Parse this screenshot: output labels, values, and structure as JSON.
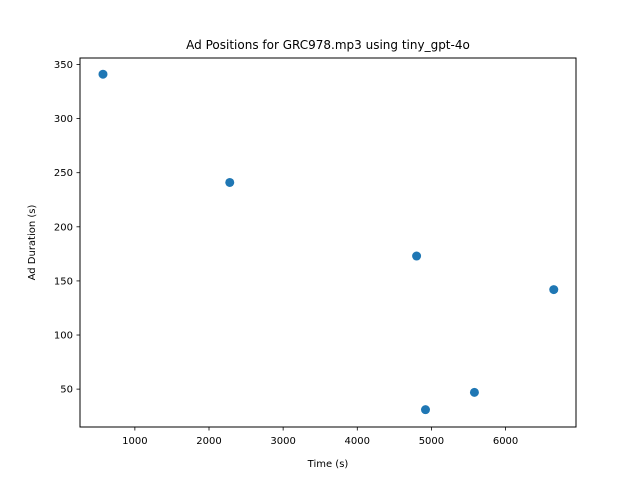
{
  "chart_data": {
    "type": "scatter",
    "title": "Ad Positions for GRC978.mp3 using tiny_gpt-4o",
    "xlabel": "Time (s)",
    "ylabel": "Ad Duration (s)",
    "xlim": [
      260,
      6950
    ],
    "ylim": [
      15,
      356
    ],
    "xticks": [
      1000,
      2000,
      3000,
      4000,
      5000,
      6000
    ],
    "yticks": [
      50,
      100,
      150,
      200,
      250,
      300,
      350
    ],
    "grid": false,
    "marker_color": "#1f77b4",
    "points": [
      {
        "x": 570,
        "y": 341
      },
      {
        "x": 2280,
        "y": 241
      },
      {
        "x": 4800,
        "y": 173
      },
      {
        "x": 4920,
        "y": 31
      },
      {
        "x": 5580,
        "y": 47
      },
      {
        "x": 6650,
        "y": 142
      }
    ]
  }
}
